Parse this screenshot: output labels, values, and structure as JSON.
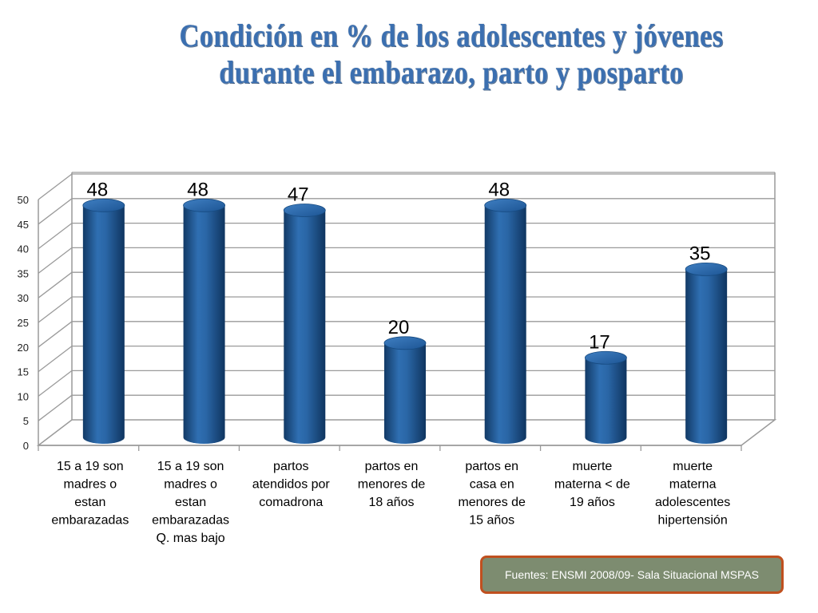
{
  "title": {
    "line1": "Condición en % de los adolescentes y jóvenes",
    "line2": "durante el embarazo, parto y posparto"
  },
  "source": "Fuentes: ENSMI 2008/09- Sala Situacional MSPAS",
  "colors": {
    "bar": "#1f5a9a",
    "bar_dark": "#123a66",
    "bar_light": "#4f8fd0",
    "title": "#3b6fb0",
    "source_bg": "#7d8c70",
    "source_border": "#c0501f"
  },
  "chart_data": {
    "type": "bar",
    "categories": [
      [
        "15 a 19  son",
        "madres o",
        "estan",
        "embarazadas"
      ],
      [
        "15 a 19  son",
        "madres o",
        "estan",
        "embarazadas",
        "Q. mas bajo"
      ],
      [
        "partos",
        "atendidos por",
        "comadrona"
      ],
      [
        "partos en",
        "menores de",
        "18 años"
      ],
      [
        "partos en",
        "casa en",
        "menores de",
        "15 años"
      ],
      [
        "muerte",
        "materna < de",
        "19 años"
      ],
      [
        "muerte",
        "materna",
        "adolescentes",
        "hipertensión"
      ]
    ],
    "values": [
      48,
      48,
      47,
      20,
      48,
      17,
      35
    ],
    "data_labels": [
      "48",
      "48",
      "47",
      "20",
      "48",
      "17",
      "35"
    ],
    "ylim": [
      0,
      50
    ],
    "yticks": [
      "0",
      "5",
      "10",
      "15",
      "20",
      "25",
      "30",
      "35",
      "40",
      "45",
      "50"
    ],
    "grid": true,
    "legend": "none"
  }
}
